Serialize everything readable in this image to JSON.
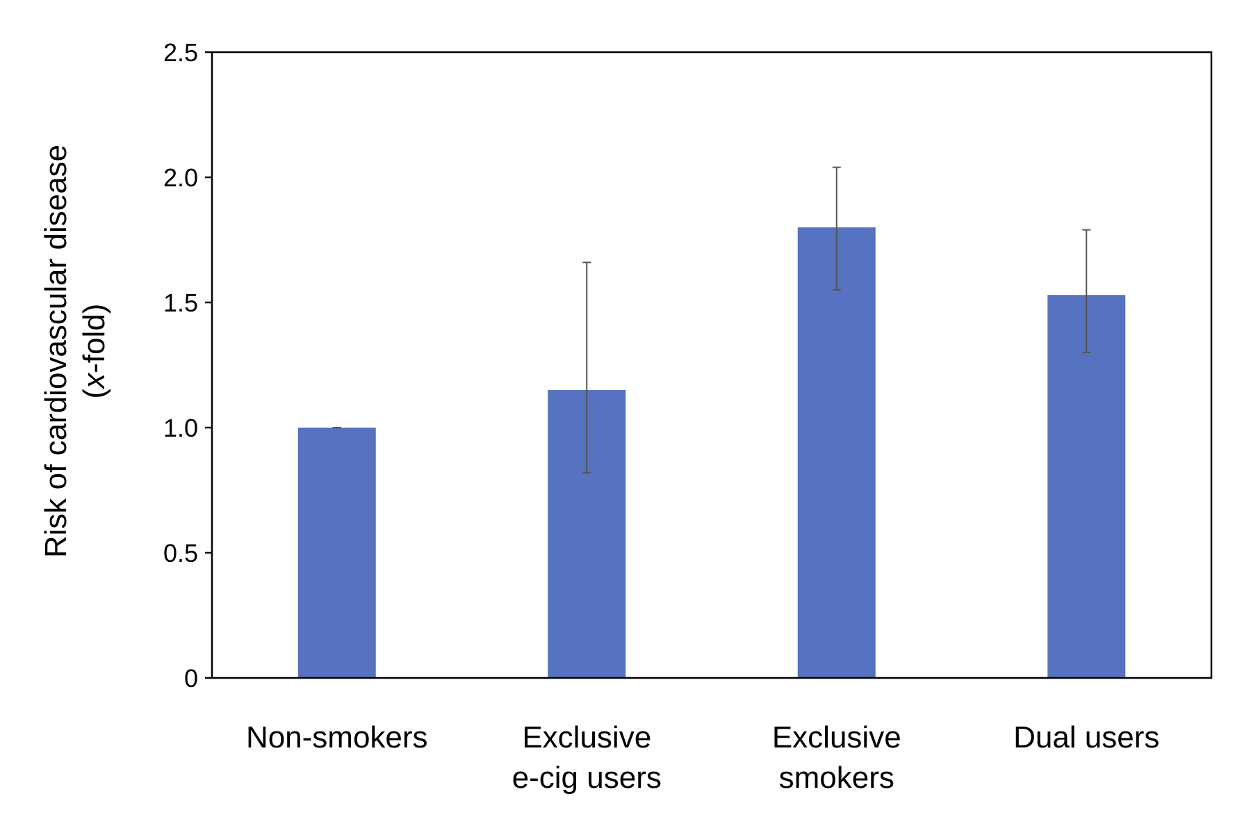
{
  "chart_data": {
    "type": "bar",
    "categories": [
      [
        "Non-smokers"
      ],
      [
        "Exclusive",
        "e-cig users"
      ],
      [
        "Exclusive",
        "smokers"
      ],
      [
        "Dual users"
      ]
    ],
    "series": [
      {
        "values": [
          1.0,
          1.15,
          1.8,
          1.53
        ],
        "error_low": [
          1.0,
          0.82,
          1.55,
          1.3
        ],
        "error_high": [
          1.0,
          1.66,
          2.04,
          1.79
        ]
      }
    ],
    "ylabel_line1": "Risk of cardiovascular disease",
    "ylabel_line2_open": "(",
    "ylabel_line2_italic": "x",
    "ylabel_line2_rest": "-fold)",
    "ylim": [
      0,
      2.5
    ],
    "yticks": [
      "0",
      "0.5",
      "1.0",
      "1.5",
      "2.0",
      "2.5"
    ],
    "ytick_values": [
      0,
      0.5,
      1.0,
      1.5,
      2.0,
      2.5
    ],
    "grid": false,
    "bar_color": "#5672c0",
    "error_color": "#555555"
  }
}
